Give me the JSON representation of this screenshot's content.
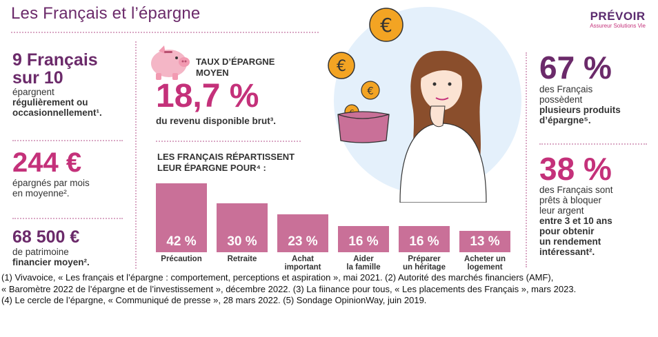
{
  "title": "Les Français et l’épargne",
  "logo": {
    "name": "PRÉVOIR",
    "tagline": "Assureur Solutions Vie"
  },
  "left": {
    "stat1": {
      "value_line1": "9 Français",
      "value_line2": "sur 10",
      "text_line1": "épargnent",
      "text_line2": "régulièrement ou",
      "text_line3": "occasionnellement¹."
    },
    "stat2": {
      "value": "244 €",
      "text_line1": "épargnés par mois",
      "text_line2": "en moyenne²."
    },
    "stat3": {
      "value": "68 500 €",
      "text_line1": "de patrimoine",
      "text_line2": "financier moyen²."
    }
  },
  "middle": {
    "savings_rate": {
      "label_line1": "TAUX D’ÉPARGNE",
      "label_line2": "MOYEN",
      "value": "18,7 %",
      "text": "du revenu disponible brut³."
    },
    "chart_heading_line1": "LES FRANÇAIS RÉPARTISSENT",
    "chart_heading_line2": "LEUR ÉPARGNE POUR⁴ :"
  },
  "chart_data": {
    "type": "bar",
    "categories": [
      "Précaution",
      "Retraite",
      "Achat important",
      "Aider la famille",
      "Préparer un héritage",
      "Acheter un logement"
    ],
    "category_lines": [
      [
        "Précaution"
      ],
      [
        "Retraite"
      ],
      [
        "Achat",
        "important"
      ],
      [
        "Aider",
        "la famille"
      ],
      [
        "Préparer",
        "un héritage"
      ],
      [
        "Acheter un",
        "logement"
      ]
    ],
    "values": [
      42,
      30,
      23,
      16,
      16,
      13
    ],
    "value_labels": [
      "42 %",
      "30 %",
      "23 %",
      "16 %",
      "16 %",
      "13 %"
    ],
    "color": "#c97098"
  },
  "right": {
    "stat1": {
      "value": "67 %",
      "text_line1": "des Français",
      "text_line2": "possèdent",
      "text_line3": "plusieurs produits",
      "text_line4": "d’épargne⁵."
    },
    "stat2": {
      "value": "38 %",
      "text_line1": "des Français sont",
      "text_line2": "prêts à bloquer",
      "text_line3": "leur argent",
      "text_line4": "entre 3 et 10 ans",
      "text_line5": "pour obtenir",
      "text_line6": "un rendement",
      "text_line7": "intéressant²."
    }
  },
  "footnotes": {
    "line1": "(1) Vivavoice, « Les français et l’épargne : comportement, perceptions et aspiration », mai 2021. (2) Autorité des marchés financiers (AMF),",
    "line2": "« Baromètre 2022 de l’épargne et de l’investissement », décembre 2022. (3) La fiinance pour tous, « Les placements des Français », mars 2023.",
    "line3": "(4) Le cercle de l’épargne, « Communiqué de presse », 28 mars 2022. (5) Sondage OpinionWay, juin 2019."
  },
  "colors": {
    "purple": "#6b2a6a",
    "pink": "#c4317a",
    "bar": "#c97098",
    "dots": "#d9a7c4"
  },
  "icons": [
    "piggy-bank-icon",
    "euro-coin-icon",
    "woman-illustration",
    "wallet-icon"
  ]
}
